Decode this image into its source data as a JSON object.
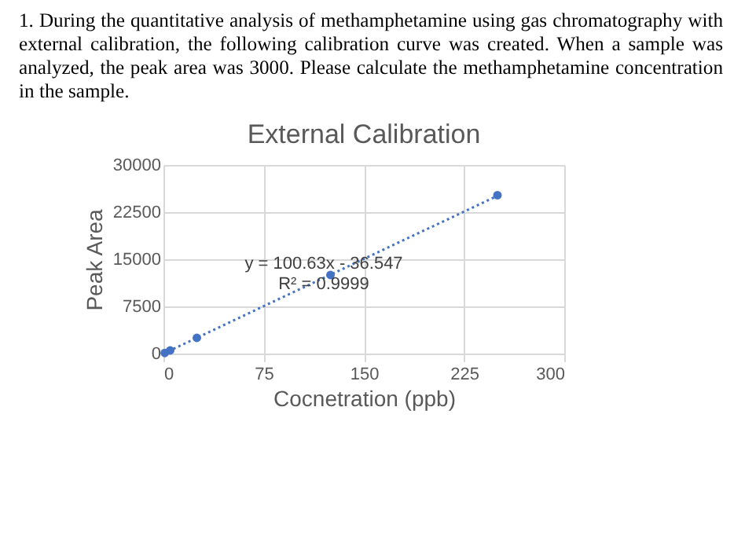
{
  "chart_data": {
    "type": "scatter",
    "title": "External Calibration",
    "xlabel": "Cocnetration (ppb)",
    "ylabel": "Peak Area",
    "annotations": [
      "1. During the quantitative analysis of methamphetamine using gas chromatography with external calibration, the following calibration curve was created. When a sample was analyzed, the peak area was 3000. Please calculate the methamphetamine concentration in the sample.",
      {
        "text": "y = 100.63x - 36.547",
        "x": 120,
        "y": 14300
      },
      {
        "text": "R² = 0.9999",
        "x": 120,
        "y": 11000
      }
    ],
    "series": [
      {
        "color": "#4472c4",
        "x": [
          1,
          5,
          25,
          125,
          250
        ],
        "values": [
          100,
          500,
          2500,
          12500,
          25200
        ]
      },
      {
        "type": "line",
        "color": "#4472c4",
        "line_style": "dotted",
        "marker": "none",
        "x": [
          0,
          250
        ],
        "values": [
          0,
          25100
        ]
      }
    ],
    "xlim": [
      0,
      300
    ],
    "xticks": [
      0,
      75,
      150,
      225,
      300
    ],
    "ylim": [
      0,
      30000
    ],
    "yticks": [
      0,
      7500,
      15000,
      22500,
      30000
    ],
    "grid": true,
    "marker": "circle"
  }
}
